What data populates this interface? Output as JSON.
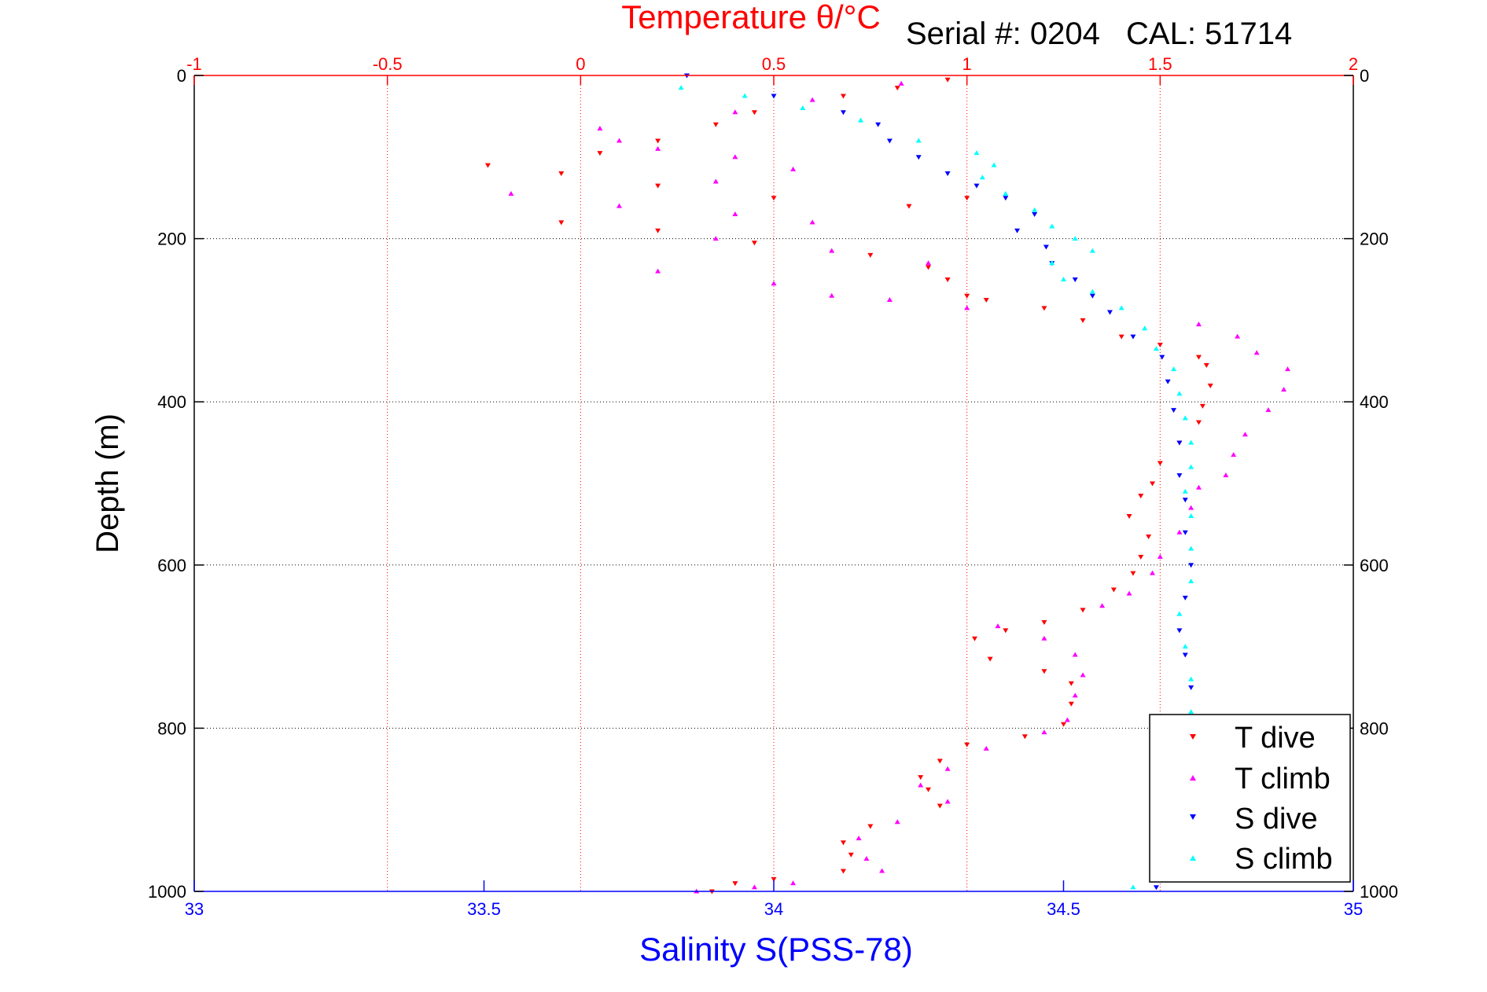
{
  "header": {
    "serial": "Serial #: 0204",
    "cal": "CAL: 51714"
  },
  "chart_data": {
    "type": "scatter",
    "title": "",
    "top_axis": {
      "label": "Temperature θ/°C",
      "range": [
        -1,
        2
      ],
      "ticks": [
        -1,
        -0.5,
        0,
        0.5,
        1,
        1.5,
        2
      ],
      "tick_labels": [
        "-1",
        "-0.5",
        "0",
        "0.5",
        "1",
        "1.5",
        "2"
      ],
      "color": "#ff0000"
    },
    "bottom_axis": {
      "label": "Salinity S(PSS-78)",
      "range": [
        33,
        35
      ],
      "ticks": [
        33,
        33.5,
        34,
        34.5,
        35
      ],
      "tick_labels": [
        "33",
        "33.5",
        "34",
        "34.5",
        "35"
      ],
      "color": "#0000ff"
    },
    "y_axis": {
      "label": "Depth (m)",
      "range": [
        0,
        1000
      ],
      "reversed": true,
      "ticks": [
        0,
        200,
        400,
        600,
        800,
        1000
      ],
      "tick_labels": [
        "0",
        "200",
        "400",
        "600",
        "800",
        "1000"
      ]
    },
    "grid": true,
    "legend": {
      "position": "bottom-right",
      "entries": [
        "T dive",
        "T climb",
        "S dive",
        "S climb"
      ]
    },
    "series": [
      {
        "name": "T dive",
        "axis": "temperature",
        "color": "#ff0000",
        "marker": "triangle-down",
        "points": [
          [
            0.95,
            5
          ],
          [
            0.82,
            15
          ],
          [
            0.68,
            25
          ],
          [
            0.45,
            45
          ],
          [
            0.35,
            60
          ],
          [
            0.2,
            80
          ],
          [
            0.05,
            95
          ],
          [
            -0.24,
            110
          ],
          [
            -0.05,
            120
          ],
          [
            0.2,
            135
          ],
          [
            0.5,
            150
          ],
          [
            0.85,
            160
          ],
          [
            1.0,
            150
          ],
          [
            -0.05,
            180
          ],
          [
            0.2,
            190
          ],
          [
            0.45,
            205
          ],
          [
            0.75,
            220
          ],
          [
            0.9,
            235
          ],
          [
            0.95,
            250
          ],
          [
            1.0,
            270
          ],
          [
            1.05,
            275
          ],
          [
            1.2,
            285
          ],
          [
            1.3,
            300
          ],
          [
            1.4,
            320
          ],
          [
            1.5,
            330
          ],
          [
            1.6,
            345
          ],
          [
            1.62,
            355
          ],
          [
            1.63,
            380
          ],
          [
            1.61,
            405
          ],
          [
            1.6,
            425
          ],
          [
            1.55,
            450
          ],
          [
            1.5,
            475
          ],
          [
            1.48,
            500
          ],
          [
            1.45,
            515
          ],
          [
            1.42,
            540
          ],
          [
            1.47,
            565
          ],
          [
            1.45,
            590
          ],
          [
            1.43,
            610
          ],
          [
            1.38,
            630
          ],
          [
            1.3,
            655
          ],
          [
            1.2,
            670
          ],
          [
            1.1,
            680
          ],
          [
            1.02,
            690
          ],
          [
            1.06,
            715
          ],
          [
            1.2,
            730
          ],
          [
            1.27,
            745
          ],
          [
            1.27,
            770
          ],
          [
            1.25,
            795
          ],
          [
            1.15,
            810
          ],
          [
            1.0,
            820
          ],
          [
            0.93,
            840
          ],
          [
            0.88,
            860
          ],
          [
            0.9,
            875
          ],
          [
            0.93,
            895
          ],
          [
            0.75,
            920
          ],
          [
            0.68,
            940
          ],
          [
            0.7,
            955
          ],
          [
            0.68,
            975
          ],
          [
            0.5,
            985
          ],
          [
            0.4,
            990
          ],
          [
            0.34,
            1000
          ]
        ]
      },
      {
        "name": "T climb",
        "axis": "temperature",
        "color": "#ff00ff",
        "marker": "triangle-up",
        "points": [
          [
            0.83,
            10
          ],
          [
            0.6,
            30
          ],
          [
            0.4,
            45
          ],
          [
            0.05,
            65
          ],
          [
            0.1,
            80
          ],
          [
            0.2,
            90
          ],
          [
            0.4,
            100
          ],
          [
            0.55,
            115
          ],
          [
            0.35,
            130
          ],
          [
            -0.18,
            145
          ],
          [
            0.1,
            160
          ],
          [
            0.4,
            170
          ],
          [
            0.6,
            180
          ],
          [
            0.35,
            200
          ],
          [
            0.65,
            215
          ],
          [
            0.9,
            230
          ],
          [
            0.2,
            240
          ],
          [
            0.5,
            255
          ],
          [
            0.65,
            270
          ],
          [
            0.8,
            275
          ],
          [
            1.0,
            285
          ],
          [
            1.6,
            305
          ],
          [
            1.7,
            320
          ],
          [
            1.75,
            340
          ],
          [
            1.83,
            360
          ],
          [
            1.82,
            385
          ],
          [
            1.78,
            410
          ],
          [
            1.72,
            440
          ],
          [
            1.69,
            465
          ],
          [
            1.67,
            490
          ],
          [
            1.6,
            505
          ],
          [
            1.58,
            530
          ],
          [
            1.55,
            560
          ],
          [
            1.5,
            590
          ],
          [
            1.48,
            610
          ],
          [
            1.42,
            635
          ],
          [
            1.35,
            650
          ],
          [
            1.08,
            675
          ],
          [
            1.2,
            690
          ],
          [
            1.28,
            710
          ],
          [
            1.3,
            735
          ],
          [
            1.28,
            760
          ],
          [
            1.26,
            790
          ],
          [
            1.2,
            805
          ],
          [
            1.05,
            825
          ],
          [
            0.95,
            850
          ],
          [
            0.88,
            870
          ],
          [
            0.95,
            890
          ],
          [
            0.82,
            915
          ],
          [
            0.72,
            935
          ],
          [
            0.74,
            960
          ],
          [
            0.78,
            975
          ],
          [
            0.55,
            990
          ],
          [
            0.45,
            995
          ],
          [
            0.3,
            1000
          ]
        ]
      },
      {
        "name": "S dive",
        "axis": "salinity",
        "color": "#0000ff",
        "marker": "triangle-down",
        "points": [
          [
            33.85,
            0
          ],
          [
            34.0,
            25
          ],
          [
            34.12,
            45
          ],
          [
            34.18,
            60
          ],
          [
            34.2,
            80
          ],
          [
            34.25,
            100
          ],
          [
            34.3,
            120
          ],
          [
            34.35,
            135
          ],
          [
            34.4,
            150
          ],
          [
            34.45,
            170
          ],
          [
            34.42,
            190
          ],
          [
            34.47,
            210
          ],
          [
            34.48,
            230
          ],
          [
            34.52,
            250
          ],
          [
            34.55,
            270
          ],
          [
            34.58,
            290
          ],
          [
            34.62,
            320
          ],
          [
            34.67,
            345
          ],
          [
            34.68,
            375
          ],
          [
            34.69,
            410
          ],
          [
            34.7,
            450
          ],
          [
            34.7,
            490
          ],
          [
            34.71,
            520
          ],
          [
            34.71,
            560
          ],
          [
            34.72,
            600
          ],
          [
            34.71,
            640
          ],
          [
            34.7,
            680
          ],
          [
            34.71,
            710
          ],
          [
            34.72,
            750
          ],
          [
            34.72,
            790
          ],
          [
            34.71,
            850
          ],
          [
            34.72,
            900
          ],
          [
            34.7,
            960
          ],
          [
            34.66,
            995
          ]
        ]
      },
      {
        "name": "S climb",
        "axis": "salinity",
        "color": "#00ffff",
        "marker": "triangle-up",
        "points": [
          [
            33.84,
            15
          ],
          [
            33.95,
            25
          ],
          [
            34.05,
            40
          ],
          [
            34.15,
            55
          ],
          [
            34.25,
            80
          ],
          [
            34.35,
            95
          ],
          [
            34.38,
            110
          ],
          [
            34.36,
            125
          ],
          [
            34.4,
            145
          ],
          [
            34.45,
            165
          ],
          [
            34.48,
            185
          ],
          [
            34.52,
            200
          ],
          [
            34.55,
            215
          ],
          [
            34.48,
            230
          ],
          [
            34.5,
            250
          ],
          [
            34.55,
            265
          ],
          [
            34.6,
            285
          ],
          [
            34.64,
            310
          ],
          [
            34.66,
            335
          ],
          [
            34.69,
            360
          ],
          [
            34.7,
            390
          ],
          [
            34.71,
            420
          ],
          [
            34.72,
            450
          ],
          [
            34.72,
            480
          ],
          [
            34.71,
            510
          ],
          [
            34.72,
            540
          ],
          [
            34.72,
            580
          ],
          [
            34.72,
            620
          ],
          [
            34.7,
            660
          ],
          [
            34.71,
            700
          ],
          [
            34.72,
            740
          ],
          [
            34.72,
            780
          ],
          [
            34.72,
            850
          ],
          [
            34.72,
            920
          ],
          [
            34.62,
            995
          ]
        ]
      }
    ]
  }
}
